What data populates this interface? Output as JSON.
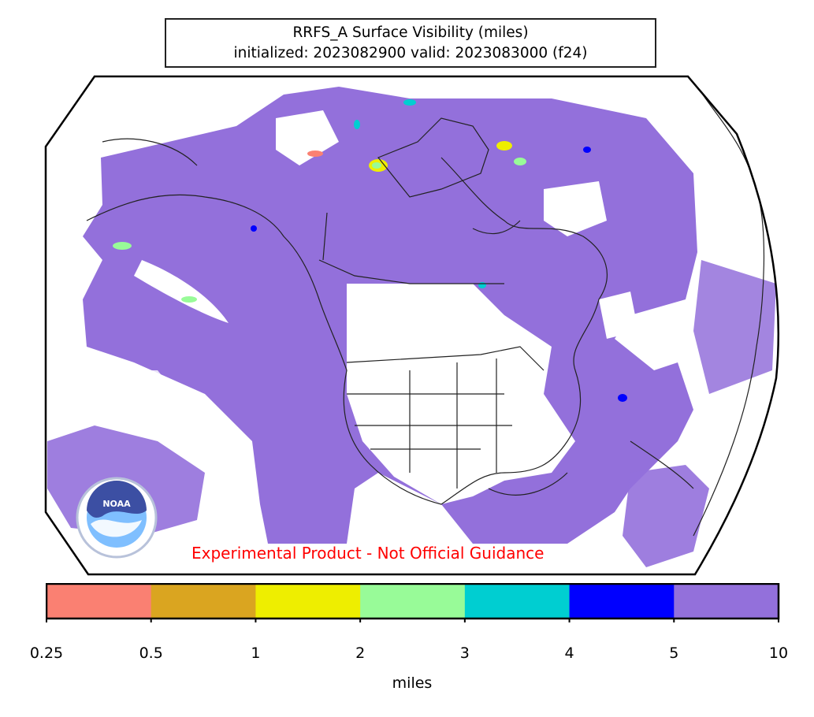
{
  "title": {
    "line1": "RRFS_A Surface Visibility (miles)",
    "line2": "initialized: 2023082900 valid: 2023083000 (f24)"
  },
  "disclaimer": "Experimental Product - Not Official Guidance",
  "logo": {
    "text": "NOAA"
  },
  "colorbar": {
    "label": "miles",
    "ticks": [
      "0.25",
      "0.5",
      "1",
      "2",
      "3",
      "4",
      "5",
      "10"
    ],
    "colors": [
      "#fa8072",
      "#daa520",
      "#eeee00",
      "#98fb98",
      "#00ced1",
      "#0000ff",
      "#9370db"
    ]
  },
  "colors": {
    "visibility_fill": "#9370db",
    "coastline": "#222222",
    "disclaimer": "#ff0000"
  }
}
